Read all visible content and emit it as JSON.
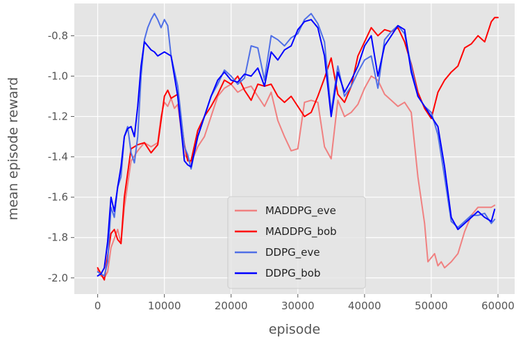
{
  "chart_data": {
    "type": "line",
    "title": "",
    "xlabel": "episode",
    "ylabel": "mean episode reward",
    "xlim": [
      -3500,
      62500
    ],
    "ylim": [
      -2.08,
      -0.64
    ],
    "xticks": [
      0,
      10000,
      20000,
      30000,
      40000,
      50000,
      60000
    ],
    "xtick_labels": [
      "0",
      "10000",
      "20000",
      "30000",
      "40000",
      "50000",
      "60000"
    ],
    "yticks": [
      -2.0,
      -1.8,
      -1.6,
      -1.4,
      -1.2,
      -1.0,
      -0.8
    ],
    "ytick_labels": [
      "-2.0",
      "-1.8",
      "-1.6",
      "-1.4",
      "-1.2",
      "-1.0",
      "-0.8"
    ],
    "grid": true,
    "legend_position": "lower-center",
    "colors": {
      "background": "#e5e5e5",
      "grid": "#ffffff"
    },
    "series": [
      {
        "name": "MADDPG_eve",
        "color": "#f08080",
        "x": [
          0,
          500,
          1000,
          1500,
          2000,
          3000,
          3500,
          4000,
          5000,
          6000,
          7000,
          8000,
          9000,
          9500,
          10000,
          10500,
          11000,
          11500,
          12000,
          13000,
          14000,
          15000,
          16000,
          17000,
          18000,
          19000,
          20000,
          21000,
          22000,
          23000,
          24000,
          25000,
          26000,
          27000,
          28000,
          29000,
          30000,
          31000,
          32000,
          33000,
          34000,
          35000,
          36000,
          37000,
          38000,
          39000,
          40000,
          41000,
          42000,
          43000,
          44000,
          45000,
          46000,
          47000,
          48000,
          49000,
          49500,
          50000,
          50500,
          51000,
          51500,
          52000,
          53000,
          54000,
          55000,
          56000,
          57000,
          58000,
          59000,
          59500
        ],
        "y": [
          -1.96,
          -1.99,
          -2.0,
          -1.97,
          -1.85,
          -1.76,
          -1.83,
          -1.65,
          -1.42,
          -1.37,
          -1.33,
          -1.35,
          -1.33,
          -1.2,
          -1.13,
          -1.15,
          -1.11,
          -1.16,
          -1.14,
          -1.39,
          -1.43,
          -1.35,
          -1.3,
          -1.2,
          -1.1,
          -1.06,
          -1.04,
          -1.08,
          -1.06,
          -1.05,
          -1.1,
          -1.15,
          -1.08,
          -1.22,
          -1.3,
          -1.37,
          -1.36,
          -1.13,
          -1.12,
          -1.13,
          -1.35,
          -1.41,
          -1.12,
          -1.2,
          -1.18,
          -1.14,
          -1.06,
          -1.0,
          -1.02,
          -1.09,
          -1.12,
          -1.15,
          -1.13,
          -1.18,
          -1.5,
          -1.73,
          -1.92,
          -1.9,
          -1.88,
          -1.94,
          -1.92,
          -1.95,
          -1.92,
          -1.88,
          -1.77,
          -1.69,
          -1.65,
          -1.65,
          -1.65,
          -1.64
        ]
      },
      {
        "name": "MADDPG_bob",
        "color": "#ff0000",
        "x": [
          0,
          500,
          1000,
          1500,
          2000,
          2500,
          3000,
          3500,
          4000,
          5000,
          6000,
          7000,
          8000,
          9000,
          10000,
          10500,
          11000,
          12000,
          13000,
          13500,
          14000,
          15000,
          16000,
          17000,
          18000,
          19000,
          20000,
          21000,
          22000,
          23000,
          24000,
          25000,
          26000,
          27000,
          28000,
          29000,
          30000,
          31000,
          32000,
          33000,
          34000,
          35000,
          36000,
          37000,
          38000,
          39000,
          40000,
          41000,
          42000,
          43000,
          44000,
          45000,
          46000,
          47000,
          48000,
          49000,
          50000,
          51000,
          52000,
          53000,
          54000,
          55000,
          56000,
          57000,
          58000,
          59000,
          59500,
          60000
        ],
        "y": [
          -1.95,
          -1.98,
          -2.01,
          -1.89,
          -1.78,
          -1.76,
          -1.81,
          -1.83,
          -1.6,
          -1.36,
          -1.34,
          -1.33,
          -1.38,
          -1.34,
          -1.1,
          -1.07,
          -1.11,
          -1.09,
          -1.34,
          -1.42,
          -1.42,
          -1.27,
          -1.2,
          -1.15,
          -1.09,
          -1.02,
          -1.04,
          -1.0,
          -1.07,
          -1.12,
          -1.04,
          -1.05,
          -1.04,
          -1.1,
          -1.13,
          -1.1,
          -1.15,
          -1.2,
          -1.18,
          -1.1,
          -1.01,
          -0.91,
          -1.09,
          -1.13,
          -1.05,
          -0.9,
          -0.83,
          -0.76,
          -0.8,
          -0.77,
          -0.78,
          -0.76,
          -0.83,
          -0.94,
          -1.08,
          -1.16,
          -1.21,
          -1.08,
          -1.02,
          -0.98,
          -0.95,
          -0.86,
          -0.84,
          -0.8,
          -0.83,
          -0.73,
          -0.71,
          -0.71
        ]
      },
      {
        "name": "DDPG_eve",
        "color": "#4f6fe6",
        "x": [
          0,
          500,
          1000,
          1500,
          2000,
          2500,
          3000,
          3500,
          4000,
          4500,
          5000,
          5500,
          6000,
          6500,
          7000,
          7500,
          8000,
          8500,
          9000,
          9500,
          10000,
          10500,
          11000,
          12000,
          13000,
          13500,
          14000,
          15000,
          16000,
          17000,
          18000,
          19000,
          20000,
          21000,
          22000,
          23000,
          24000,
          25000,
          26000,
          27000,
          28000,
          29000,
          30000,
          31000,
          32000,
          33000,
          34000,
          35000,
          36000,
          37000,
          38000,
          39000,
          40000,
          41000,
          42000,
          43000,
          44000,
          45000,
          46000,
          47000,
          48000,
          49000,
          50000,
          51000,
          52000,
          53000,
          54000,
          55000,
          56000,
          57000,
          58000,
          59000,
          59500
        ],
        "y": [
          -1.97,
          -1.98,
          -1.99,
          -1.92,
          -1.65,
          -1.7,
          -1.55,
          -1.5,
          -1.3,
          -1.25,
          -1.38,
          -1.43,
          -1.3,
          -1.0,
          -0.82,
          -0.76,
          -0.72,
          -0.69,
          -0.72,
          -0.76,
          -0.72,
          -0.75,
          -0.9,
          -1.05,
          -1.35,
          -1.39,
          -1.46,
          -1.3,
          -1.2,
          -1.1,
          -1.04,
          -0.97,
          -1.0,
          -1.04,
          -1.01,
          -0.85,
          -0.86,
          -1.02,
          -0.8,
          -0.82,
          -0.85,
          -0.81,
          -0.79,
          -0.72,
          -0.69,
          -0.74,
          -0.83,
          -1.18,
          -0.95,
          -1.1,
          -1.05,
          -0.98,
          -0.92,
          -0.9,
          -1.06,
          -0.82,
          -0.78,
          -0.75,
          -0.79,
          -0.95,
          -1.1,
          -1.15,
          -1.18,
          -1.29,
          -1.5,
          -1.72,
          -1.75,
          -1.72,
          -1.69,
          -1.69,
          -1.68,
          -1.73,
          -1.71
        ]
      },
      {
        "name": "DDPG_bob",
        "color": "#0000ff",
        "x": [
          0,
          500,
          1000,
          1500,
          2000,
          2500,
          3000,
          3500,
          4000,
          4500,
          5000,
          5500,
          6000,
          6500,
          7000,
          7500,
          8000,
          8500,
          9000,
          10000,
          11000,
          12000,
          13000,
          13500,
          14000,
          15000,
          16000,
          17000,
          18000,
          19000,
          20000,
          21000,
          22000,
          23000,
          24000,
          25000,
          26000,
          27000,
          28000,
          29000,
          30000,
          31000,
          32000,
          33000,
          34000,
          35000,
          36000,
          37000,
          38000,
          39000,
          40000,
          41000,
          42000,
          43000,
          44000,
          45000,
          46000,
          47000,
          48000,
          49000,
          50000,
          51000,
          52000,
          53000,
          54000,
          55000,
          56000,
          57000,
          58000,
          59000,
          59500
        ],
        "y": [
          -1.99,
          -1.98,
          -1.95,
          -1.82,
          -1.6,
          -1.67,
          -1.55,
          -1.45,
          -1.3,
          -1.26,
          -1.25,
          -1.3,
          -1.15,
          -0.95,
          -0.83,
          -0.85,
          -0.87,
          -0.88,
          -0.9,
          -0.88,
          -0.9,
          -1.1,
          -1.42,
          -1.44,
          -1.45,
          -1.3,
          -1.2,
          -1.1,
          -1.02,
          -0.98,
          -1.02,
          -1.03,
          -0.99,
          -1.0,
          -0.96,
          -1.05,
          -0.88,
          -0.92,
          -0.87,
          -0.85,
          -0.77,
          -0.73,
          -0.72,
          -0.76,
          -0.9,
          -1.2,
          -0.98,
          -1.08,
          -1.02,
          -0.95,
          -0.85,
          -0.8,
          -1.0,
          -0.85,
          -0.8,
          -0.75,
          -0.77,
          -0.98,
          -1.1,
          -1.15,
          -1.2,
          -1.25,
          -1.45,
          -1.7,
          -1.76,
          -1.73,
          -1.7,
          -1.67,
          -1.7,
          -1.72,
          -1.66
        ]
      }
    ]
  }
}
